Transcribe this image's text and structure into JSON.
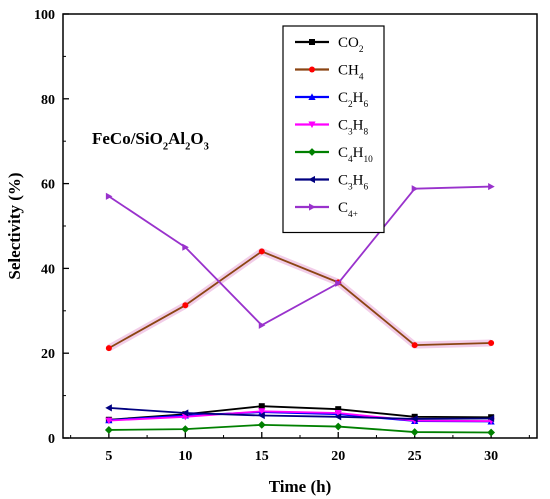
{
  "chart_data": {
    "type": "line",
    "xlabel": "Time (h)",
    "ylabel": "Selectivity (%)",
    "xlim": [
      2,
      33
    ],
    "ylim": [
      0,
      100
    ],
    "xticks": [
      5,
      10,
      15,
      20,
      25,
      30
    ],
    "yticks": [
      0,
      20,
      40,
      60,
      80,
      100
    ],
    "x": [
      5,
      10,
      15,
      20,
      25,
      30
    ],
    "annotation": {
      "parts": [
        {
          "text": "FeCo/SiO",
          "sub": false
        },
        {
          "text": "2",
          "sub": true
        },
        {
          "text": "Al",
          "sub": false
        },
        {
          "text": "2",
          "sub": true
        },
        {
          "text": "O",
          "sub": false
        },
        {
          "text": "3",
          "sub": true
        }
      ]
    },
    "legend_position": "top-right-center",
    "series": [
      {
        "name": "CO2",
        "name_parts": [
          {
            "text": "CO",
            "sub": false
          },
          {
            "text": "2",
            "sub": true
          }
        ],
        "color": "#000000",
        "marker": "square",
        "values": [
          4.3,
          5.6,
          7.5,
          6.8,
          5.0,
          4.9
        ]
      },
      {
        "name": "CH4",
        "name_parts": [
          {
            "text": "CH",
            "sub": false
          },
          {
            "text": "4",
            "sub": true
          }
        ],
        "color": "#ff0000",
        "line_color": "#8b4513",
        "halo_color": "#f2cde8",
        "marker": "circle",
        "values": [
          21.2,
          31.3,
          44.0,
          36.7,
          21.9,
          22.4
        ]
      },
      {
        "name": "C2H6",
        "name_parts": [
          {
            "text": "C",
            "sub": false
          },
          {
            "text": "2",
            "sub": true
          },
          {
            "text": "H",
            "sub": false
          },
          {
            "text": "6",
            "sub": true
          }
        ],
        "color": "#0000ff",
        "marker": "triangle-up",
        "values": [
          4.2,
          5.3,
          6.1,
          5.6,
          4.0,
          3.9
        ]
      },
      {
        "name": "C3H8",
        "name_parts": [
          {
            "text": "C",
            "sub": false
          },
          {
            "text": "3",
            "sub": true
          },
          {
            "text": "H",
            "sub": false
          },
          {
            "text": "8",
            "sub": true
          }
        ],
        "color": "#ff00ff",
        "marker": "triangle-down",
        "values": [
          4.1,
          5.0,
          6.3,
          5.9,
          4.1,
          4.0
        ]
      },
      {
        "name": "C4H10",
        "name_parts": [
          {
            "text": "C",
            "sub": false
          },
          {
            "text": "4",
            "sub": true
          },
          {
            "text": "H",
            "sub": false
          },
          {
            "text": "10",
            "sub": true
          }
        ],
        "color": "#008000",
        "marker": "diamond",
        "values": [
          1.9,
          2.1,
          3.1,
          2.7,
          1.4,
          1.3
        ]
      },
      {
        "name": "C3H6",
        "name_parts": [
          {
            "text": "C",
            "sub": false
          },
          {
            "text": "3",
            "sub": true
          },
          {
            "text": "H",
            "sub": false
          },
          {
            "text": "6",
            "sub": true
          }
        ],
        "color": "#000080",
        "marker": "triangle-left",
        "values": [
          7.1,
          5.9,
          5.3,
          5.0,
          4.5,
          4.6
        ]
      },
      {
        "name": "C4+",
        "name_parts": [
          {
            "text": "C",
            "sub": false
          },
          {
            "text": "4+",
            "sub": true
          }
        ],
        "color": "#9932cc",
        "marker": "triangle-right",
        "values": [
          57.0,
          45.0,
          26.6,
          36.5,
          58.8,
          59.3
        ]
      }
    ]
  }
}
